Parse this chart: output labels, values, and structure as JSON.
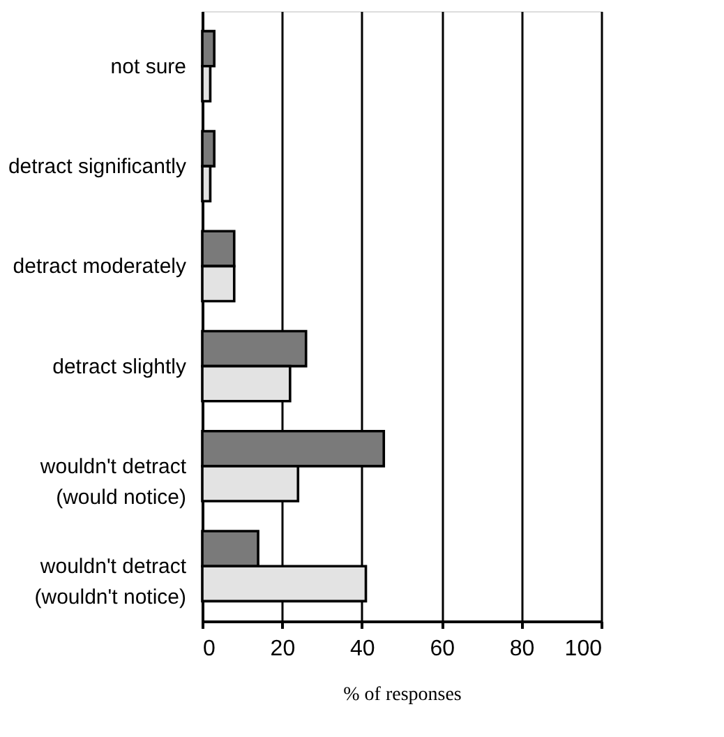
{
  "chart_data": {
    "type": "bar",
    "orientation": "horizontal",
    "xlabel": "% of responses",
    "categories": [
      "not sure",
      "detract significantly",
      "detract moderately",
      "detract slightly",
      "wouldn't detract\n(would notice)",
      "wouldn't detract\n(wouldn't notice)"
    ],
    "series": [
      {
        "color": "#7a7a7a",
        "values": [
          3,
          3,
          8,
          26,
          45.5,
          14
        ]
      },
      {
        "color": "#e3e3e3",
        "values": [
          2,
          2,
          8,
          22,
          24,
          41
        ]
      }
    ],
    "xlim": [
      0,
      100
    ],
    "xticks": [
      0,
      20,
      40,
      60,
      80,
      100
    ],
    "grid": "x"
  }
}
